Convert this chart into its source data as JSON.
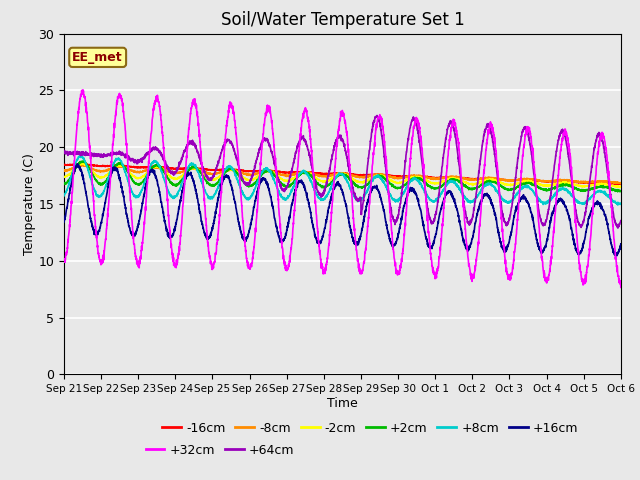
{
  "title": "Soil/Water Temperature Set 1",
  "xlabel": "Time",
  "ylabel": "Temperature (C)",
  "ylim": [
    0,
    30
  ],
  "annotation": "EE_met",
  "annotation_bg": "#FFFF99",
  "annotation_border": "#8B6914",
  "fig_bg": "#E8E8E8",
  "plot_bg": "#E8E8E8",
  "series": [
    {
      "label": "-16cm",
      "color": "#FF0000"
    },
    {
      "label": "-8cm",
      "color": "#FF8C00"
    },
    {
      "label": "-2cm",
      "color": "#FFFF00"
    },
    {
      "label": "+2cm",
      "color": "#00BB00"
    },
    {
      "label": "+8cm",
      "color": "#00CCCC"
    },
    {
      "label": "+16cm",
      "color": "#000088"
    },
    {
      "label": "+32cm",
      "color": "#FF00FF"
    },
    {
      "label": "+64cm",
      "color": "#9900BB"
    }
  ],
  "xtick_labels": [
    "Sep 21",
    "Sep 22",
    "Sep 23",
    "Sep 24",
    "Sep 25",
    "Sep 26",
    "Sep 27",
    "Sep 28",
    "Sep 29",
    "Sep 30",
    "Oct 1",
    "Oct 2",
    "Oct 3",
    "Oct 4",
    "Oct 5",
    "Oct 6"
  ],
  "legend_fontsize": 9,
  "title_fontsize": 12
}
